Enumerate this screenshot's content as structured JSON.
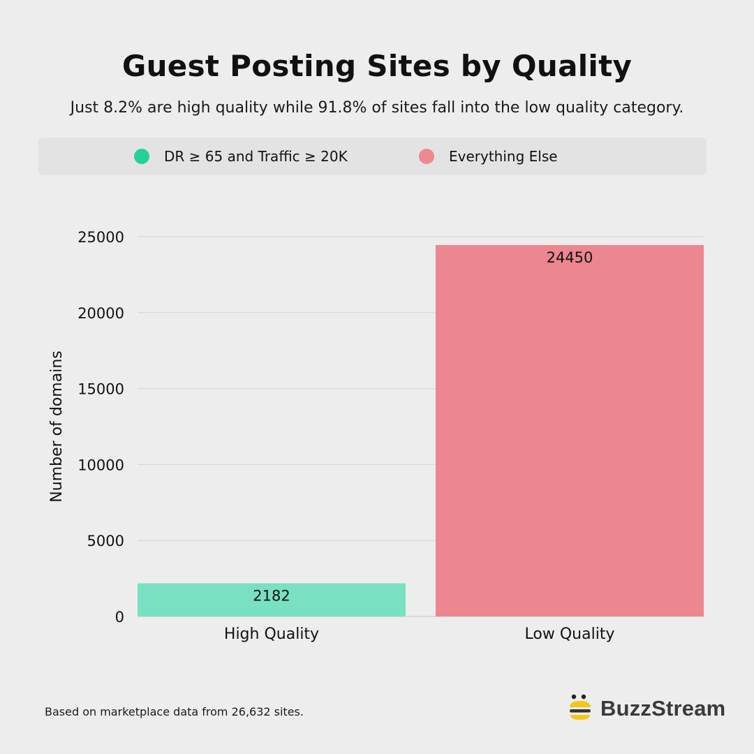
{
  "title": "Guest Posting Sites by Quality",
  "subtitle": "Just 8.2% are high quality while 91.8% of sites fall into the low quality category.",
  "legend": [
    {
      "label": "DR ≥ 65 and Traffic ≥ 20K",
      "color": "#27cf9b"
    },
    {
      "label": "Everything Else",
      "color": "#ec8991"
    }
  ],
  "chart_data": {
    "type": "bar",
    "categories": [
      "High Quality",
      "Low Quality"
    ],
    "values": [
      2182,
      24450
    ],
    "data_labels": [
      "2182",
      "24450"
    ],
    "bar_colors": [
      "#79e0c1",
      "#ec8690"
    ],
    "title": "Guest Posting Sites by Quality",
    "xlabel": "",
    "ylabel": "Number of domains",
    "ylim": [
      0,
      25000
    ],
    "yticks": [
      0,
      5000,
      10000,
      15000,
      20000,
      25000
    ],
    "grid": true,
    "legend_position": "top"
  },
  "footnote": "Based on marketplace data from 26,632 sites.",
  "brand": {
    "name": "BuzzStream"
  }
}
